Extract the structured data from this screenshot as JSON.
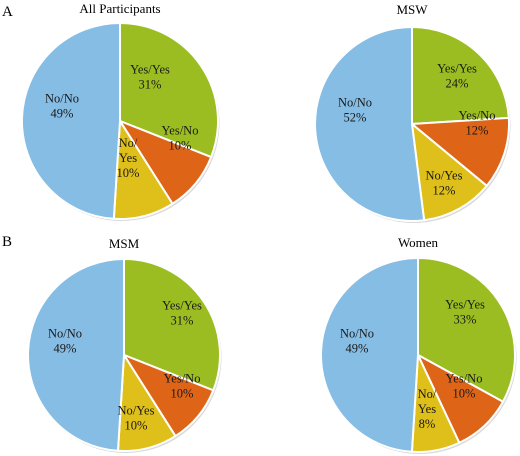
{
  "panel_labels": [
    "A",
    "B"
  ],
  "colors": {
    "yes_yes": "#9cbd22",
    "yes_no": "#de6418",
    "no_yes": "#dfbf19",
    "no_no": "#86bde5"
  },
  "chart_data": [
    {
      "type": "pie",
      "title": "All Participants",
      "slices": [
        {
          "label_lines": [
            "Yes/Yes",
            "31%"
          ],
          "value": 31,
          "color_key": "yes_yes"
        },
        {
          "label_lines": [
            "Yes/No",
            "10%"
          ],
          "value": 10,
          "color_key": "yes_no"
        },
        {
          "label_lines": [
            "No/",
            "Yes",
            "10%"
          ],
          "value": 10,
          "color_key": "no_yes"
        },
        {
          "label_lines": [
            "No/No",
            "49%"
          ],
          "value": 49,
          "color_key": "no_no"
        }
      ]
    },
    {
      "type": "pie",
      "title": "MSW",
      "slices": [
        {
          "label_lines": [
            "Yes/Yes",
            "24%"
          ],
          "value": 24,
          "color_key": "yes_yes"
        },
        {
          "label_lines": [
            "Yes/No",
            "12%"
          ],
          "value": 12,
          "color_key": "yes_no"
        },
        {
          "label_lines": [
            "No/Yes",
            "12%"
          ],
          "value": 12,
          "color_key": "no_yes"
        },
        {
          "label_lines": [
            "No/No",
            "52%"
          ],
          "value": 52,
          "color_key": "no_no"
        }
      ]
    },
    {
      "type": "pie",
      "title": "MSM",
      "slices": [
        {
          "label_lines": [
            "Yes/Yes",
            "31%"
          ],
          "value": 31,
          "color_key": "yes_yes"
        },
        {
          "label_lines": [
            "Yes/No",
            "10%"
          ],
          "value": 10,
          "color_key": "yes_no"
        },
        {
          "label_lines": [
            "No/Yes",
            "10%"
          ],
          "value": 10,
          "color_key": "no_yes"
        },
        {
          "label_lines": [
            "No/No",
            "49%"
          ],
          "value": 49,
          "color_key": "no_no"
        }
      ]
    },
    {
      "type": "pie",
      "title": "Women",
      "slices": [
        {
          "label_lines": [
            "Yes/Yes",
            "33%"
          ],
          "value": 33,
          "color_key": "yes_yes"
        },
        {
          "label_lines": [
            "Yes/No",
            "10%"
          ],
          "value": 10,
          "color_key": "yes_no"
        },
        {
          "label_lines": [
            "No/",
            "Yes",
            "8%"
          ],
          "value": 8,
          "color_key": "no_yes"
        },
        {
          "label_lines": [
            "No/No",
            "49%"
          ],
          "value": 49,
          "color_key": "no_no"
        }
      ]
    }
  ]
}
